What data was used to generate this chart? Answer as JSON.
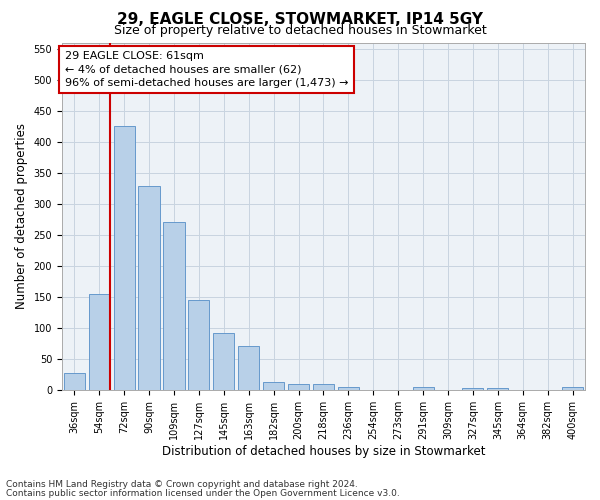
{
  "title1": "29, EAGLE CLOSE, STOWMARKET, IP14 5GY",
  "title2": "Size of property relative to detached houses in Stowmarket",
  "xlabel": "Distribution of detached houses by size in Stowmarket",
  "ylabel": "Number of detached properties",
  "categories": [
    "36sqm",
    "54sqm",
    "72sqm",
    "90sqm",
    "109sqm",
    "127sqm",
    "145sqm",
    "163sqm",
    "182sqm",
    "200sqm",
    "218sqm",
    "236sqm",
    "254sqm",
    "273sqm",
    "291sqm",
    "309sqm",
    "327sqm",
    "345sqm",
    "364sqm",
    "382sqm",
    "400sqm"
  ],
  "values": [
    27,
    155,
    425,
    328,
    270,
    145,
    92,
    70,
    12,
    10,
    10,
    5,
    0,
    0,
    5,
    0,
    3,
    3,
    0,
    0,
    5
  ],
  "bar_color": "#b8d0e8",
  "bar_edge_color": "#6699cc",
  "annotation_text": "29 EAGLE CLOSE: 61sqm\n← 4% of detached houses are smaller (62)\n96% of semi-detached houses are larger (1,473) →",
  "vline_color": "#cc0000",
  "box_edge_color": "#cc0000",
  "ylim": [
    0,
    560
  ],
  "yticks": [
    0,
    50,
    100,
    150,
    200,
    250,
    300,
    350,
    400,
    450,
    500,
    550
  ],
  "plot_bg_color": "#edf2f7",
  "footer1": "Contains HM Land Registry data © Crown copyright and database right 2024.",
  "footer2": "Contains public sector information licensed under the Open Government Licence v3.0.",
  "title1_fontsize": 11,
  "title2_fontsize": 9,
  "xlabel_fontsize": 8.5,
  "ylabel_fontsize": 8.5,
  "tick_fontsize": 7,
  "annotation_fontsize": 8,
  "footer_fontsize": 6.5,
  "grid_color": "#c8d4e0"
}
